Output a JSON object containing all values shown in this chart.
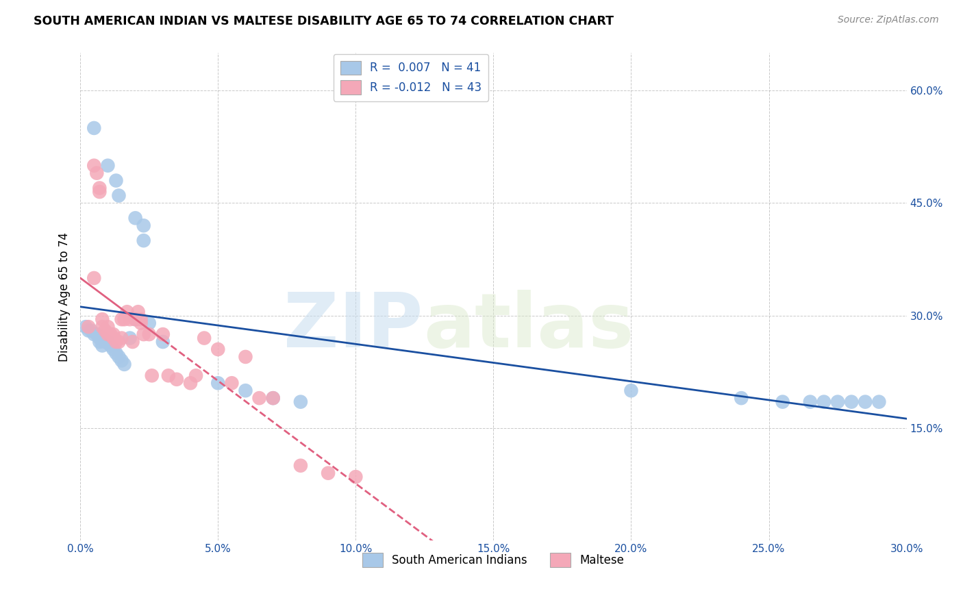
{
  "title": "SOUTH AMERICAN INDIAN VS MALTESE DISABILITY AGE 65 TO 74 CORRELATION CHART",
  "source": "Source: ZipAtlas.com",
  "ylabel": "Disability Age 65 to 74",
  "xlim": [
    0.0,
    0.3
  ],
  "ylim": [
    0.0,
    0.65
  ],
  "xticks": [
    0.0,
    0.05,
    0.1,
    0.15,
    0.2,
    0.25,
    0.3
  ],
  "xticklabels": [
    "0.0%",
    "5.0%",
    "10.0%",
    "15.0%",
    "20.0%",
    "25.0%",
    "30.0%"
  ],
  "yticks": [
    0.15,
    0.3,
    0.45,
    0.6
  ],
  "yticklabels": [
    "15.0%",
    "30.0%",
    "45.0%",
    "60.0%"
  ],
  "blue_R": 0.007,
  "blue_N": 41,
  "pink_R": -0.012,
  "pink_N": 43,
  "blue_color": "#a8c8e8",
  "pink_color": "#f4a8b8",
  "blue_line_color": "#1a4fa0",
  "pink_line_color": "#e06080",
  "watermark_zip": "ZIP",
  "watermark_atlas": "atlas",
  "legend_labels": [
    "South American Indians",
    "Maltese"
  ],
  "blue_x": [
    0.005,
    0.01,
    0.013,
    0.014,
    0.02,
    0.023,
    0.023,
    0.002,
    0.003,
    0.004,
    0.005,
    0.006,
    0.007,
    0.007,
    0.008,
    0.008,
    0.009,
    0.01,
    0.011,
    0.012,
    0.013,
    0.014,
    0.015,
    0.016,
    0.018,
    0.02,
    0.025,
    0.03,
    0.05,
    0.06,
    0.07,
    0.08,
    0.2,
    0.24,
    0.255,
    0.265,
    0.27,
    0.275,
    0.28,
    0.285,
    0.29
  ],
  "blue_y": [
    0.55,
    0.5,
    0.48,
    0.46,
    0.43,
    0.42,
    0.4,
    0.285,
    0.28,
    0.28,
    0.275,
    0.275,
    0.27,
    0.265,
    0.27,
    0.26,
    0.265,
    0.265,
    0.26,
    0.255,
    0.25,
    0.245,
    0.24,
    0.235,
    0.27,
    0.295,
    0.29,
    0.265,
    0.21,
    0.2,
    0.19,
    0.185,
    0.2,
    0.19,
    0.185,
    0.185,
    0.185,
    0.185,
    0.185,
    0.185,
    0.185
  ],
  "pink_x": [
    0.003,
    0.005,
    0.005,
    0.006,
    0.007,
    0.007,
    0.008,
    0.008,
    0.009,
    0.01,
    0.01,
    0.011,
    0.012,
    0.012,
    0.013,
    0.014,
    0.015,
    0.015,
    0.016,
    0.017,
    0.018,
    0.019,
    0.02,
    0.021,
    0.022,
    0.022,
    0.023,
    0.025,
    0.026,
    0.03,
    0.032,
    0.035,
    0.04,
    0.042,
    0.045,
    0.05,
    0.055,
    0.06,
    0.065,
    0.07,
    0.08,
    0.09,
    0.1
  ],
  "pink_y": [
    0.285,
    0.35,
    0.5,
    0.49,
    0.47,
    0.465,
    0.295,
    0.285,
    0.28,
    0.285,
    0.275,
    0.275,
    0.275,
    0.27,
    0.265,
    0.265,
    0.27,
    0.295,
    0.295,
    0.305,
    0.295,
    0.265,
    0.295,
    0.305,
    0.29,
    0.295,
    0.275,
    0.275,
    0.22,
    0.275,
    0.22,
    0.215,
    0.21,
    0.22,
    0.27,
    0.255,
    0.21,
    0.245,
    0.19,
    0.19,
    0.1,
    0.09,
    0.085
  ]
}
